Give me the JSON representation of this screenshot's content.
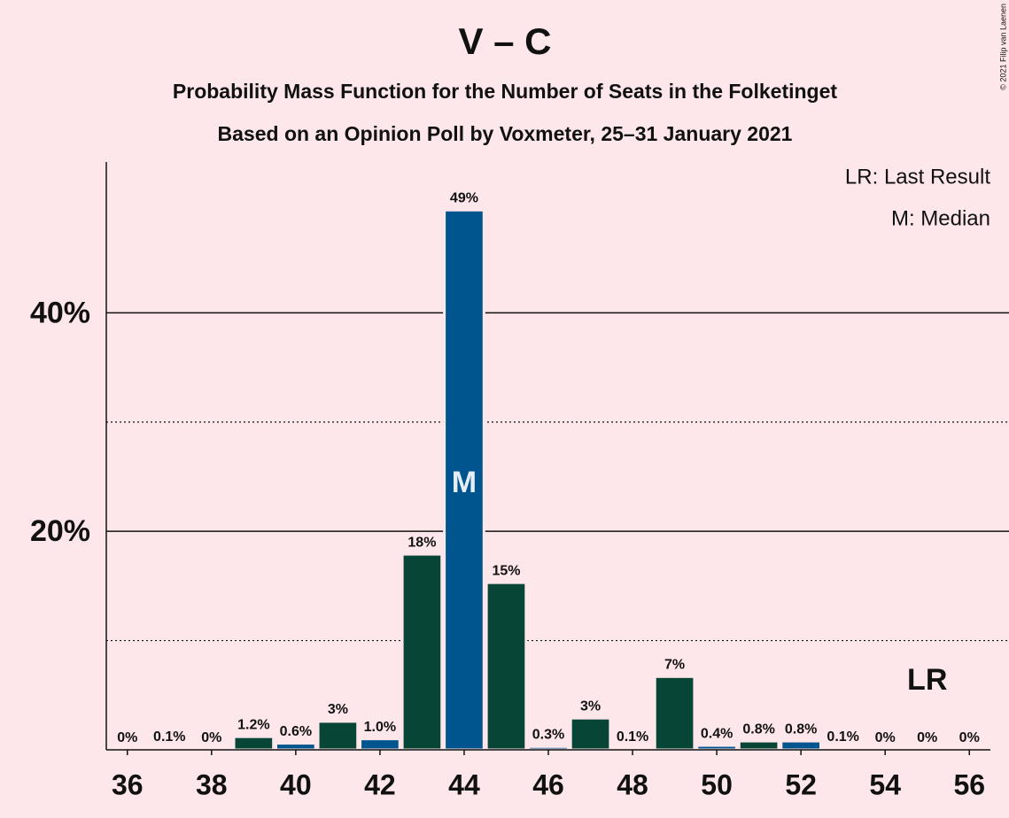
{
  "chart_data": {
    "type": "bar",
    "title": "V – C",
    "subtitles": [
      "Probability Mass Function for the Number of Seats in the Folketinget",
      "Based on an Opinion Poll by Voxmeter, 25–31 January 2021"
    ],
    "x": [
      36,
      37,
      38,
      39,
      40,
      41,
      42,
      43,
      44,
      45,
      46,
      47,
      48,
      49,
      50,
      51,
      52,
      53,
      54,
      55,
      56
    ],
    "values": [
      0,
      0.1,
      0,
      1.2,
      0.6,
      2.6,
      1.0,
      17.9,
      49.4,
      15.3,
      0.3,
      2.9,
      0.1,
      6.7,
      0.4,
      0.8,
      0.8,
      0.1,
      0,
      0,
      0
    ],
    "value_labels": [
      "0%",
      "0.1%",
      "0%",
      "1.2%",
      "0.6%",
      "3%",
      "1.0%",
      "18%",
      "49%",
      "15%",
      "0.3%",
      "3%",
      "0.1%",
      "7%",
      "0.4%",
      "0.8%",
      "0.8%",
      "0.1%",
      "0%",
      "0%",
      "0%"
    ],
    "colors": [
      "#00558f",
      "#074536",
      "#00558f",
      "#074536",
      "#00558f",
      "#074536",
      "#00558f",
      "#074536",
      "#00558f",
      "#074536",
      "#00558f",
      "#074536",
      "#00558f",
      "#074536",
      "#00558f",
      "#074536",
      "#00558f",
      "#074536",
      "#00558f",
      "#074536",
      "#00558f"
    ],
    "xlim": [
      35.5,
      56.5
    ],
    "xticks": [
      36,
      38,
      40,
      42,
      44,
      46,
      48,
      50,
      52,
      54,
      56
    ],
    "ylim": [
      0,
      53.8
    ],
    "yticks": [
      {
        "value": 20,
        "label": "20%"
      },
      {
        "value": 40,
        "label": "40%"
      }
    ],
    "minor_yticks": [
      10,
      30
    ],
    "grid": true,
    "median": 44,
    "median_label": "M",
    "last_result": 55,
    "last_result_label": "LR",
    "legend": [
      "LR: Last Result",
      "M: Median"
    ],
    "copyright": "© 2021 Filip van Laenen"
  }
}
